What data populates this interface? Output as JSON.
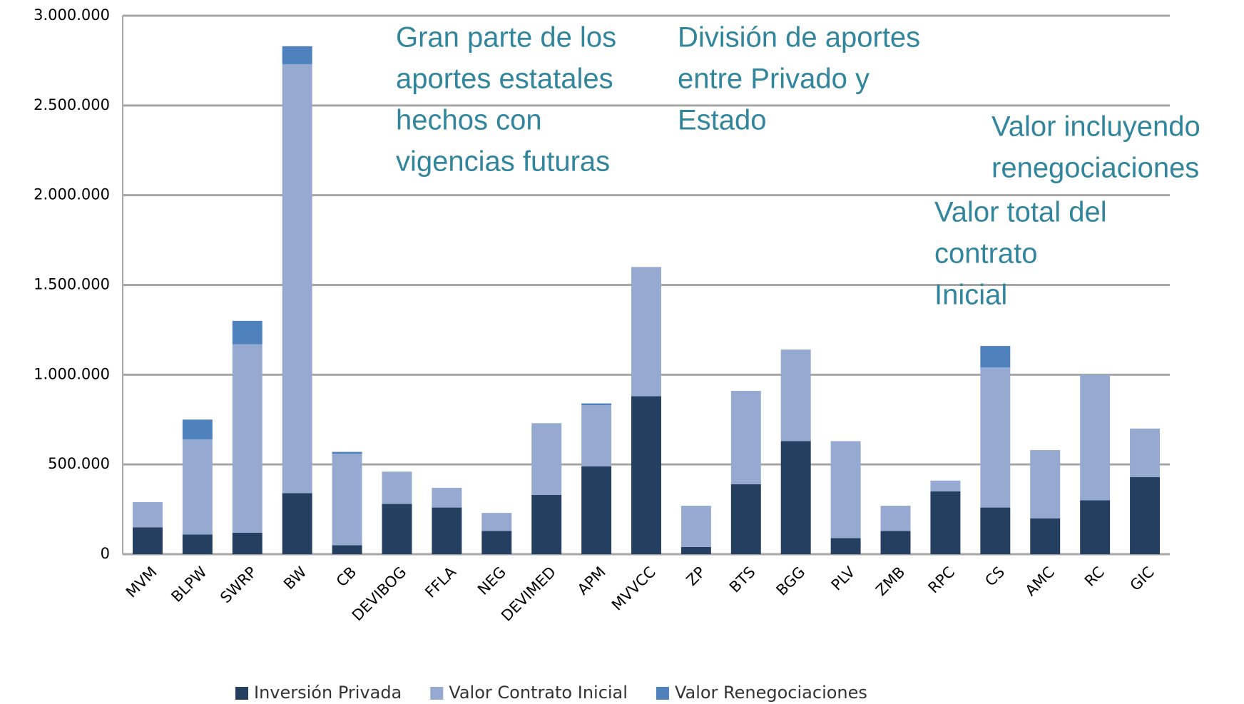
{
  "chart_data": {
    "type": "stacked_bar",
    "categories": [
      "MVM",
      "BLPW",
      "SWRP",
      "BW",
      "CB",
      "DEVIBOG",
      "FFLA",
      "NEG",
      "DEVIMED",
      "APM",
      "MVVCC",
      "ZP",
      "BTS",
      "BGG",
      "PLV",
      "ZMB",
      "RPC",
      "CS",
      "AMC",
      "RC",
      "GIC"
    ],
    "series": [
      {
        "name": "Inversión Privada",
        "color": "#243f60",
        "values": [
          150000,
          110000,
          120000,
          340000,
          50000,
          280000,
          260000,
          130000,
          330000,
          490000,
          880000,
          40000,
          390000,
          630000,
          90000,
          130000,
          350000,
          260000,
          200000,
          300000,
          430000
        ]
      },
      {
        "name": "Valor Contrato Inicial",
        "color": "#95a9d1",
        "values": [
          140000,
          530000,
          1050000,
          2390000,
          510000,
          180000,
          110000,
          100000,
          400000,
          340000,
          720000,
          230000,
          520000,
          510000,
          540000,
          140000,
          60000,
          780000,
          380000,
          700000,
          270000
        ]
      },
      {
        "name": "Valor Renegociaciones",
        "color": "#4f81bd",
        "values": [
          0,
          110000,
          130000,
          100000,
          10000,
          0,
          0,
          0,
          0,
          10000,
          0,
          0,
          0,
          0,
          0,
          0,
          0,
          120000,
          0,
          0,
          0
        ]
      }
    ],
    "ylim": [
      0,
      3000000
    ],
    "yticks": [
      0,
      {
        "value": 500000,
        "label": "500.000"
      },
      {
        "value": 1000000,
        "label": "1.000.000"
      },
      {
        "value": 1500000,
        "label": "1.500.000"
      },
      {
        "value": 2000000,
        "label": "2.000.000"
      },
      {
        "value": 2500000,
        "label": "2.500.000"
      },
      {
        "value": 3000000,
        "label": "3.000.000"
      }
    ],
    "grid": true,
    "legend": "bottom",
    "annotations": [
      [
        "Gran parte de los",
        "aportes estatales",
        "hechos con",
        "vigencias futuras"
      ],
      [
        "División de aportes",
        "entre Privado y",
        "Estado"
      ],
      [
        "Valor incluyendo",
        "renegociaciones"
      ],
      [
        "Valor total del",
        "contrato",
        "Inicial"
      ]
    ]
  }
}
